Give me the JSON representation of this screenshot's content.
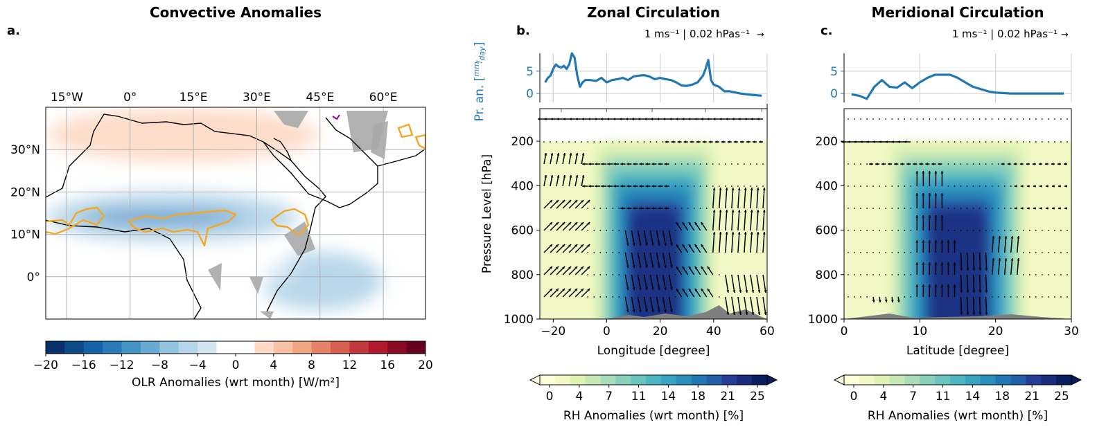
{
  "colors": {
    "precip_line": "#1f77b4",
    "orange_contour": "#f5a623",
    "terrain": "#7f7f7f",
    "land_mask": "#a9a9a9",
    "grid": "#b0b0b0"
  },
  "chart_data": [
    {
      "type": "heatmap",
      "panel_label": "a.",
      "title": "Convective Anomalies",
      "map_extent": {
        "lon": [
          -20,
          70
        ],
        "lat": [
          -10,
          40
        ]
      },
      "lon_ticks": [
        "15°W",
        "0°",
        "15°E",
        "30°E",
        "45°E",
        "60°E"
      ],
      "lat_ticks": [
        "30°N",
        "20°N",
        "10°N",
        "0°"
      ],
      "colorbar": {
        "label": "OLR Anomalies (wrt month) [W/m²]",
        "min": -20,
        "max": 20,
        "step": 2,
        "ticks": [
          "−20",
          "−16",
          "−12",
          "−8",
          "−4",
          "0",
          "4",
          "8",
          "12",
          "16",
          "20"
        ],
        "colors": [
          "#08306b",
          "#0d4a8a",
          "#1662a8",
          "#2b7bba",
          "#4393c3",
          "#6aa9d2",
          "#92c5de",
          "#b5d5e9",
          "#d1e5f0",
          "#ffffff",
          "#ffffff",
          "#fddbc7",
          "#f8c0a5",
          "#f4a582",
          "#e58267",
          "#d6604d",
          "#c2383f",
          "#b2182b",
          "#8a0b25",
          "#67001f"
        ]
      },
      "anomaly_regions": [
        {
          "lon": [
            -15,
            30
          ],
          "lat": [
            12,
            16
          ],
          "value": -13
        },
        {
          "lon": [
            -20,
            40
          ],
          "lat": [
            8,
            20
          ],
          "value": -6
        },
        {
          "lon": [
            30,
            60
          ],
          "lat": [
            -8,
            6
          ],
          "value": -5
        },
        {
          "lon": [
            -15,
            40
          ],
          "lat": [
            -5,
            8
          ],
          "value": -2
        },
        {
          "lon": [
            -20,
            45
          ],
          "lat": [
            27,
            40
          ],
          "value": 3
        }
      ]
    },
    {
      "type": "line",
      "panel_label": "b.",
      "title": "Zonal Circulation",
      "ylabel": "Pr. an. [mm/day]",
      "ylabel_prefix": "Pr. an. [",
      "ylabel_num": "mm",
      "ylabel_den": "day",
      "ylabel_suffix": "]",
      "yticks": [
        "5",
        "0"
      ],
      "ylim": [
        -2,
        9
      ],
      "x": [
        -23,
        -22,
        -21,
        -20,
        -19,
        -18,
        -17,
        -16,
        -15,
        -14,
        -13,
        -12,
        -11,
        -10,
        -9,
        -8,
        -6,
        -4,
        -2,
        0,
        2,
        4,
        6,
        8,
        10,
        12,
        14,
        16,
        18,
        20,
        22,
        24,
        26,
        28,
        30,
        32,
        34,
        36,
        37,
        38,
        39,
        40,
        42,
        44,
        46,
        50,
        54,
        58
      ],
      "values": [
        2.5,
        3.5,
        4,
        5.5,
        6.5,
        6,
        5.8,
        6.2,
        5.5,
        6.5,
        9,
        8,
        4,
        1.5,
        2.5,
        3,
        3,
        2.8,
        3.5,
        2.5,
        3,
        3.2,
        3.5,
        3,
        3.8,
        4,
        4.1,
        3.8,
        3.2,
        3.5,
        3.2,
        3,
        2.5,
        1.8,
        1.7,
        2,
        2.5,
        4,
        5.5,
        7.5,
        3,
        2,
        1.5,
        0.5,
        0.5,
        0,
        -0.3,
        -0.5
      ],
      "quiver_key": "1 ms⁻¹ | 0.02 hPas⁻¹"
    },
    {
      "type": "heatmap",
      "title": "Zonal Circulation",
      "xlabel": "Longitude [degree]",
      "ylabel": "Pressure Level [hPa]",
      "xlim": [
        -25,
        60
      ],
      "ylim": [
        1000,
        100
      ],
      "xticks": [
        -20,
        0,
        20,
        40,
        60
      ],
      "yticks": [
        200,
        400,
        600,
        800,
        1000
      ],
      "high_rh_core": {
        "x": [
          5,
          40
        ],
        "p": [
          200,
          1000
        ],
        "peak_x": 18,
        "peak_value": 23
      },
      "colorbar": {
        "label": "RH Anomalies (wrt month) [%]",
        "min": 0,
        "max": 25,
        "ticks": [
          "0",
          "4",
          "7",
          "11",
          "14",
          "18",
          "21",
          "25"
        ],
        "colors": [
          "#ffffd9",
          "#f2f9c6",
          "#e1f3b4",
          "#c7e9b4",
          "#a9ddb7",
          "#8ad1bb",
          "#6ac5be",
          "#4db6c3",
          "#38a4c2",
          "#2a8fbd",
          "#2077b4",
          "#235fa8",
          "#253d96",
          "#1a2a7d",
          "#0a1d5e"
        ]
      },
      "quiver_key": "1 ms⁻¹ | 0.02 hPas⁻¹"
    },
    {
      "type": "line",
      "panel_label": "c.",
      "title": "Meridional Circulation",
      "yticks": [
        "5",
        "0"
      ],
      "ylim": [
        -2,
        9
      ],
      "x": [
        1,
        2,
        3,
        4,
        5,
        6,
        7,
        8,
        9,
        10,
        11,
        12,
        13,
        14,
        15,
        16,
        17,
        18,
        19,
        20,
        22,
        25,
        28,
        29
      ],
      "values": [
        -0.2,
        -0.5,
        -1.2,
        1.5,
        3,
        1.5,
        1.3,
        2.5,
        1.2,
        2.5,
        3.5,
        4.2,
        4.2,
        4.2,
        3.5,
        2.5,
        1.5,
        1,
        0.5,
        0.2,
        0,
        0,
        0,
        0
      ],
      "quiver_key": "1 ms⁻¹ | 0.02 hPas⁻¹"
    },
    {
      "type": "heatmap",
      "title": "Meridional Circulation",
      "xlabel": "Latitude [degree]",
      "ylabel": "",
      "xlim": [
        0,
        30
      ],
      "ylim": [
        1000,
        100
      ],
      "xticks": [
        0,
        10,
        20,
        30
      ],
      "yticks": [
        200,
        400,
        600,
        800,
        1000
      ],
      "high_rh_core": {
        "x": [
          8,
          22
        ],
        "p": [
          200,
          1000
        ],
        "peak_x": 15,
        "peak_value": 23
      },
      "colorbar": {
        "label": "RH Anomalies (wrt month) [%]",
        "min": 0,
        "max": 25,
        "ticks": [
          "0",
          "4",
          "7",
          "11",
          "14",
          "18",
          "21",
          "25"
        ],
        "colors": [
          "#ffffd9",
          "#f2f9c6",
          "#e1f3b4",
          "#c7e9b4",
          "#a9ddb7",
          "#8ad1bb",
          "#6ac5be",
          "#4db6c3",
          "#38a4c2",
          "#2a8fbd",
          "#2077b4",
          "#235fa8",
          "#253d96",
          "#1a2a7d",
          "#0a1d5e"
        ]
      },
      "quiver_key": "1 ms⁻¹ | 0.02 hPas⁻¹"
    }
  ]
}
